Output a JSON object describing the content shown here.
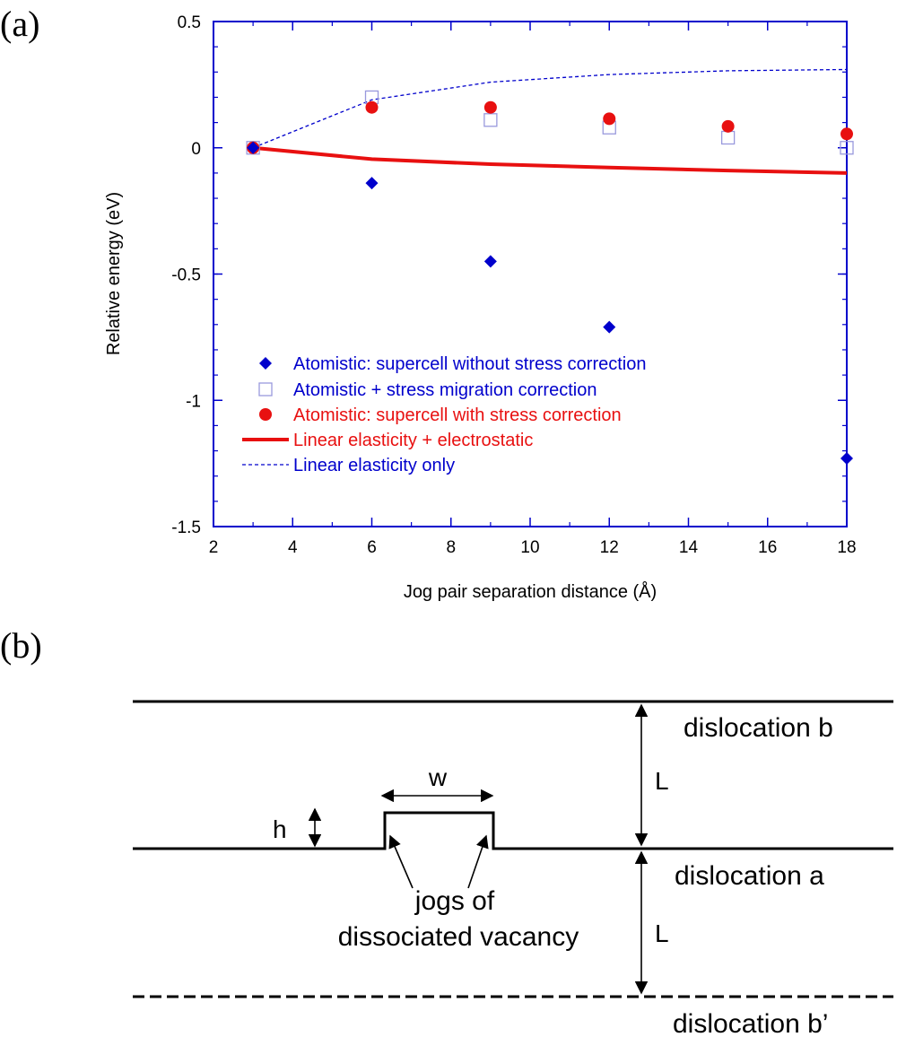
{
  "panel_a": {
    "label": "(a)"
  },
  "panel_b": {
    "label": "(b)"
  },
  "colors": {
    "blue": "#0000cc",
    "red": "#e81010",
    "light_blue": "#9999dd",
    "black": "#000000"
  },
  "chart_data": {
    "type": "scatter",
    "xlabel": "Jog pair separation distance (Å)",
    "ylabel": "Relative energy (eV)",
    "xlim": [
      2,
      18
    ],
    "ylim": [
      -1.5,
      0.5
    ],
    "x_ticks": [
      2,
      4,
      6,
      8,
      10,
      12,
      14,
      16,
      18
    ],
    "y_ticks": [
      0.5,
      0,
      -0.5,
      -1,
      -1.5
    ],
    "x_tick_labels": [
      "2",
      "4",
      "6",
      "8",
      "10",
      "12",
      "14",
      "16",
      "18"
    ],
    "y_tick_labels": [
      "0.5",
      "0",
      "-0.5",
      "-1",
      "-1.5"
    ],
    "legend_position": "lower-left",
    "series": [
      {
        "name": "Atomistic: supercell without stress correction",
        "marker": "diamond",
        "color": "#0000cc",
        "x": [
          3,
          6,
          9,
          12,
          18
        ],
        "y": [
          0,
          -0.14,
          -0.45,
          -0.71,
          -1.23
        ]
      },
      {
        "name": "Atomistic + stress migration correction",
        "marker": "open-square",
        "color": "#9999dd",
        "x": [
          3,
          6,
          9,
          12,
          15,
          18
        ],
        "y": [
          0,
          0.2,
          0.11,
          0.08,
          0.04,
          0.0
        ]
      },
      {
        "name": "Atomistic: supercell with stress correction",
        "marker": "filled-circle",
        "color": "#e81010",
        "x": [
          3,
          6,
          9,
          12,
          15,
          18
        ],
        "y": [
          0,
          0.16,
          0.16,
          0.115,
          0.085,
          0.055
        ]
      },
      {
        "name": "Linear elasticity + electrostatic",
        "marker": "solid-line",
        "color": "#e81010",
        "x": [
          3,
          6,
          9,
          12,
          15,
          18
        ],
        "y": [
          0,
          -0.045,
          -0.065,
          -0.078,
          -0.09,
          -0.1
        ]
      },
      {
        "name": "Linear elasticity only",
        "marker": "dashed-line",
        "color": "#0000cc",
        "x": [
          3,
          6,
          9,
          12,
          15,
          18
        ],
        "y": [
          0,
          0.19,
          0.26,
          0.29,
          0.305,
          0.31
        ]
      }
    ]
  },
  "diagram": {
    "labels": {
      "dislocation_b": "dislocation b",
      "dislocation_a": "dislocation a",
      "dislocation_b_prime": "dislocation b’",
      "L_top": "L",
      "L_bottom": "L",
      "w": "w",
      "h": "h",
      "jogs_line1": "jogs of",
      "jogs_line2": "dissociated vacancy"
    }
  }
}
